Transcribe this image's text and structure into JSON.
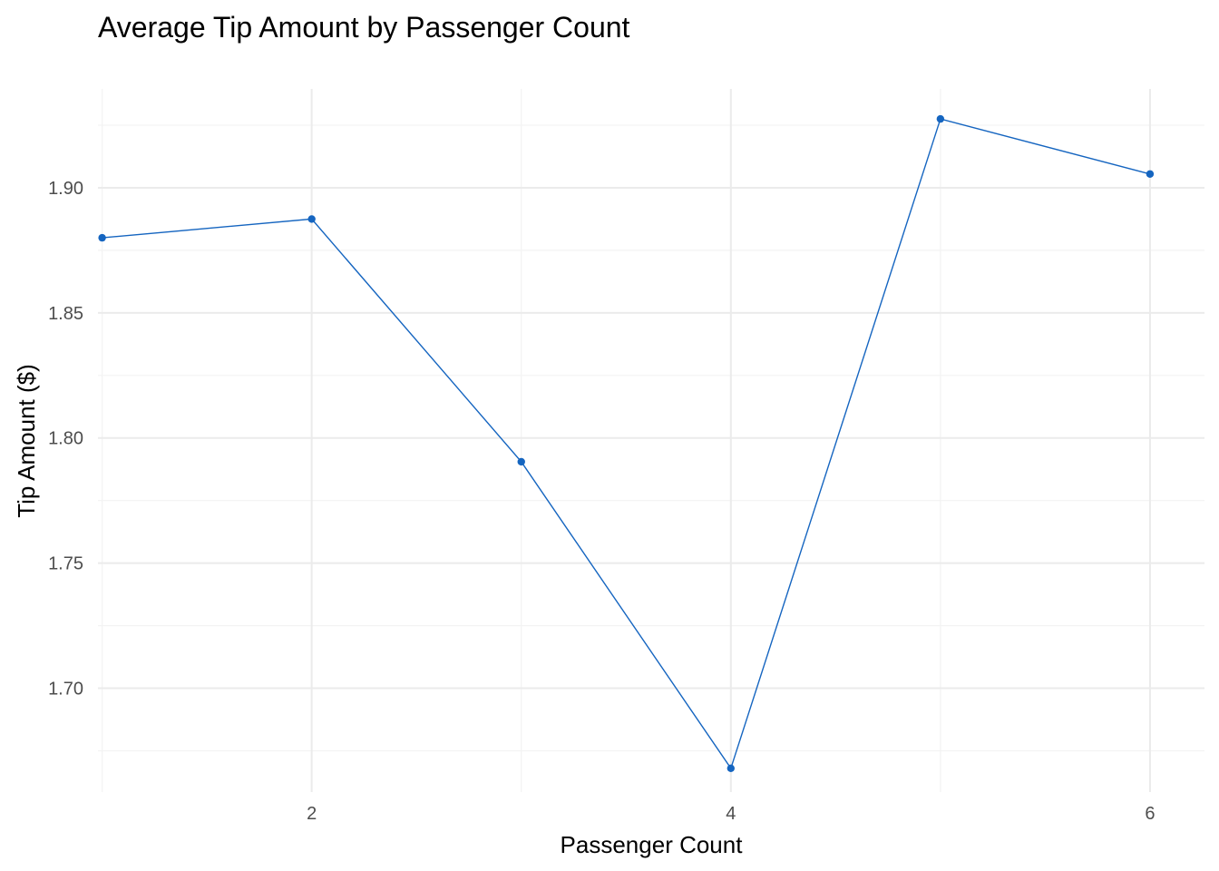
{
  "chart_data": {
    "type": "line",
    "title": "Average Tip Amount by Passenger Count",
    "xlabel": "Passenger Count",
    "ylabel": "Tip Amount ($)",
    "x": [
      1,
      2,
      3,
      4,
      5,
      6
    ],
    "series": [
      {
        "values": [
          1.88,
          1.8875,
          1.7905,
          1.668,
          1.9275,
          1.9055
        ]
      }
    ],
    "xlim": [
      0.98,
      6.26
    ],
    "ylim": [
      1.6585,
      1.9395
    ],
    "x_ticks": [
      2,
      4,
      6
    ],
    "x_tick_labels": [
      "2",
      "4",
      "6"
    ],
    "y_ticks": [
      1.7,
      1.75,
      1.8,
      1.85,
      1.9
    ],
    "y_tick_labels": [
      "1.70",
      "1.75",
      "1.80",
      "1.85",
      "1.90"
    ],
    "grid": true,
    "legend": "none",
    "colors": {
      "line": "#1565C0",
      "grid_major": "#EBEBEB",
      "grid_minor": "#F3F3F3"
    }
  }
}
